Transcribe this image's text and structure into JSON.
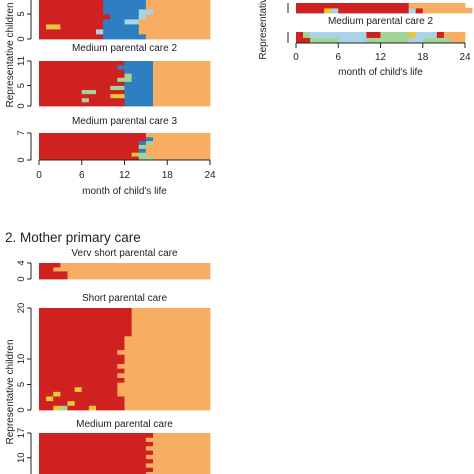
{
  "colors": {
    "red": "#d02121",
    "orange": "#f7ad62",
    "blue": "#2e7fc2",
    "green": "#a3d497",
    "yellow": "#e6c93b",
    "paleblue": "#aad3e8"
  },
  "sections": {
    "mother_primary": "2. Mother primary care"
  },
  "axis": {
    "xlabel": "month of child's life",
    "ylabel": "Representative children",
    "xticks": [
      "0",
      "6",
      "12",
      "18",
      "24"
    ]
  },
  "chart_data": [
    {
      "type": "sequence-index",
      "title": "",
      "ylabel": "Representative children",
      "xlim": [
        0,
        24
      ],
      "ylim": [
        0,
        9
      ],
      "yticks": [
        "0",
        "5"
      ],
      "rows": [
        [
          [
            "red",
            9
          ],
          [
            "blue",
            6
          ],
          [
            "orange",
            9
          ]
        ],
        [
          [
            "red",
            8
          ],
          [
            "paleblue",
            1
          ],
          [
            "blue",
            5
          ],
          [
            "orange",
            10
          ]
        ],
        [
          [
            "red",
            1
          ],
          [
            "yellow",
            2
          ],
          [
            "red",
            6
          ],
          [
            "blue",
            5
          ],
          [
            "orange",
            10
          ]
        ],
        [
          [
            "red",
            9
          ],
          [
            "blue",
            3
          ],
          [
            "paleblue",
            2
          ],
          [
            "orange",
            10
          ]
        ],
        [
          [
            "red",
            10
          ],
          [
            "blue",
            4
          ],
          [
            "paleblue",
            1
          ],
          [
            "orange",
            9
          ]
        ],
        [
          [
            "red",
            9
          ],
          [
            "blue",
            5
          ],
          [
            "paleblue",
            2
          ],
          [
            "orange",
            8
          ]
        ],
        [
          [
            "red",
            9
          ],
          [
            "blue",
            6
          ],
          [
            "orange",
            9
          ]
        ],
        [
          [
            "red",
            9
          ],
          [
            "blue",
            6
          ],
          [
            "orange",
            9
          ]
        ],
        [
          [
            "red",
            9
          ],
          [
            "blue",
            6
          ],
          [
            "orange",
            9
          ]
        ]
      ]
    },
    {
      "type": "sequence-index",
      "title": "Medium parental care 2",
      "ylabel": "",
      "xlim": [
        0,
        24
      ],
      "ylim": [
        0,
        11
      ],
      "yticks": [
        "0",
        "5",
        "11"
      ],
      "rows": [
        [
          [
            "red",
            12
          ],
          [
            "blue",
            4
          ],
          [
            "orange",
            8
          ]
        ],
        [
          [
            "red",
            6
          ],
          [
            "green",
            1
          ],
          [
            "red",
            5
          ],
          [
            "blue",
            4
          ],
          [
            "orange",
            8
          ]
        ],
        [
          [
            "red",
            10
          ],
          [
            "yellow",
            2
          ],
          [
            "blue",
            4
          ],
          [
            "orange",
            8
          ]
        ],
        [
          [
            "red",
            6
          ],
          [
            "green",
            2
          ],
          [
            "red",
            4
          ],
          [
            "blue",
            4
          ],
          [
            "orange",
            8
          ]
        ],
        [
          [
            "red",
            10
          ],
          [
            "green",
            2
          ],
          [
            "blue",
            4
          ],
          [
            "orange",
            8
          ]
        ],
        [
          [
            "red",
            12
          ],
          [
            "blue",
            4
          ],
          [
            "orange",
            8
          ]
        ],
        [
          [
            "red",
            11
          ],
          [
            "green",
            2
          ],
          [
            "blue",
            3
          ],
          [
            "orange",
            8
          ]
        ],
        [
          [
            "red",
            12
          ],
          [
            "green",
            1
          ],
          [
            "blue",
            3
          ],
          [
            "orange",
            8
          ]
        ],
        [
          [
            "red",
            12
          ],
          [
            "blue",
            4
          ],
          [
            "orange",
            8
          ]
        ],
        [
          [
            "red",
            11
          ],
          [
            "blue",
            5
          ],
          [
            "orange",
            8
          ]
        ],
        [
          [
            "red",
            12
          ],
          [
            "blue",
            4
          ],
          [
            "orange",
            8
          ]
        ]
      ]
    },
    {
      "type": "sequence-index",
      "title": "Medium parental care 3",
      "ylabel": "",
      "xlim": [
        0,
        24
      ],
      "ylim": [
        0,
        7
      ],
      "yticks": [
        "0",
        "7"
      ],
      "rows": [
        [
          [
            "red",
            14
          ],
          [
            "green",
            2
          ],
          [
            "orange",
            8
          ]
        ],
        [
          [
            "red",
            13
          ],
          [
            "yellow",
            1
          ],
          [
            "green",
            1
          ],
          [
            "orange",
            9
          ]
        ],
        [
          [
            "red",
            14
          ],
          [
            "blue",
            1
          ],
          [
            "orange",
            9
          ]
        ],
        [
          [
            "red",
            14
          ],
          [
            "green",
            1
          ],
          [
            "orange",
            9
          ]
        ],
        [
          [
            "red",
            14
          ],
          [
            "blue",
            1
          ],
          [
            "green",
            1
          ],
          [
            "orange",
            8
          ]
        ],
        [
          [
            "red",
            15
          ],
          [
            "blue",
            1
          ],
          [
            "orange",
            8
          ]
        ],
        [
          [
            "red",
            15
          ],
          [
            "orange",
            9
          ]
        ]
      ]
    },
    {
      "type": "sequence-index",
      "title": "",
      "ylabel": "Representative",
      "xlim": [
        0,
        24
      ],
      "ylim": [
        0,
        4
      ],
      "yticks": [],
      "rows": [
        [
          [
            "red",
            4
          ],
          [
            "yellow",
            1
          ],
          [
            "paleblue",
            1
          ],
          [
            "red",
            10
          ],
          [
            "paleblue",
            1
          ],
          [
            "red",
            1
          ],
          [
            "orange",
            7
          ]
        ],
        [
          [
            "red",
            16
          ],
          [
            "orange",
            8
          ]
        ]
      ]
    },
    {
      "type": "sequence-index",
      "title": "Medium parental care 2",
      "ylabel": "",
      "xlim": [
        0,
        24
      ],
      "ylim": [
        0,
        4
      ],
      "yticks": [],
      "rows": [
        [
          [
            "red",
            2
          ],
          [
            "green",
            4
          ],
          [
            "paleblue",
            4
          ],
          [
            "green",
            6
          ],
          [
            "paleblue",
            2
          ],
          [
            "green",
            4
          ],
          [
            "orange",
            2
          ]
        ],
        [
          [
            "red",
            1
          ],
          [
            "green",
            1
          ],
          [
            "paleblue",
            8
          ],
          [
            "red",
            2
          ],
          [
            "green",
            4
          ],
          [
            "yellow",
            1
          ],
          [
            "paleblue",
            3
          ],
          [
            "red",
            1
          ],
          [
            "orange",
            3
          ]
        ]
      ]
    },
    {
      "type": "sequence-index",
      "title": "Verv short parental care",
      "ylabel": "",
      "xlim": [
        0,
        24
      ],
      "ylim": [
        0,
        4
      ],
      "yticks": [
        "0",
        "4"
      ],
      "rows": [
        [
          [
            "red",
            4
          ],
          [
            "orange",
            20
          ]
        ],
        [
          [
            "red",
            4
          ],
          [
            "orange",
            20
          ]
        ],
        [
          [
            "red",
            2
          ],
          [
            "orange",
            22
          ]
        ],
        [
          [
            "red",
            3
          ],
          [
            "orange",
            21
          ]
        ]
      ]
    },
    {
      "type": "sequence-index",
      "title": "Short parental care",
      "ylabel": "Representative children",
      "xlim": [
        0,
        24
      ],
      "ylim": [
        0,
        20
      ],
      "yticks": [
        "0",
        "5",
        "10",
        "20"
      ],
      "rows": [
        [
          [
            "red",
            2
          ],
          [
            "yellow",
            1
          ],
          [
            "green",
            1
          ],
          [
            "red",
            3
          ],
          [
            "yellow",
            1
          ],
          [
            "red",
            4
          ],
          [
            "orange",
            12
          ]
        ],
        [
          [
            "red",
            4
          ],
          [
            "yellow",
            1
          ],
          [
            "red",
            7
          ],
          [
            "orange",
            12
          ]
        ],
        [
          [
            "red",
            1
          ],
          [
            "yellow",
            1
          ],
          [
            "red",
            10
          ],
          [
            "orange",
            12
          ]
        ],
        [
          [
            "red",
            2
          ],
          [
            "yellow",
            1
          ],
          [
            "red",
            8
          ],
          [
            "orange",
            13
          ]
        ],
        [
          [
            "red",
            5
          ],
          [
            "yellow",
            1
          ],
          [
            "red",
            5
          ],
          [
            "orange",
            13
          ]
        ],
        [
          [
            "red",
            11
          ],
          [
            "orange",
            13
          ]
        ],
        [
          [
            "red",
            12
          ],
          [
            "orange",
            12
          ]
        ],
        [
          [
            "red",
            11
          ],
          [
            "orange",
            13
          ]
        ],
        [
          [
            "red",
            12
          ],
          [
            "orange",
            12
          ]
        ],
        [
          [
            "red",
            11
          ],
          [
            "orange",
            13
          ]
        ],
        [
          [
            "red",
            12
          ],
          [
            "orange",
            12
          ]
        ],
        [
          [
            "red",
            12
          ],
          [
            "orange",
            12
          ]
        ],
        [
          [
            "red",
            11
          ],
          [
            "orange",
            13
          ]
        ],
        [
          [
            "red",
            12
          ],
          [
            "orange",
            12
          ]
        ],
        [
          [
            "red",
            12
          ],
          [
            "orange",
            12
          ]
        ],
        [
          [
            "red",
            12
          ],
          [
            "orange",
            12
          ]
        ],
        [
          [
            "red",
            13
          ],
          [
            "orange",
            11
          ]
        ],
        [
          [
            "red",
            13
          ],
          [
            "orange",
            11
          ]
        ],
        [
          [
            "red",
            13
          ],
          [
            "orange",
            11
          ]
        ],
        [
          [
            "red",
            13
          ],
          [
            "orange",
            11
          ]
        ],
        [
          [
            "red",
            13
          ],
          [
            "orange",
            11
          ]
        ],
        [
          [
            "red",
            13
          ],
          [
            "orange",
            11
          ]
        ]
      ]
    },
    {
      "type": "sequence-index",
      "title": "Medium parental care",
      "ylabel": "",
      "xlim": [
        0,
        24
      ],
      "ylim": [
        0,
        17
      ],
      "yticks": [
        "10",
        "17"
      ],
      "rows": [
        [
          [
            "red",
            15
          ],
          [
            "blue",
            1
          ],
          [
            "orange",
            8
          ]
        ],
        [
          [
            "red",
            14
          ],
          [
            "green",
            1
          ],
          [
            "blue",
            1
          ],
          [
            "orange",
            8
          ]
        ],
        [
          [
            "red",
            15
          ],
          [
            "green",
            1
          ],
          [
            "orange",
            8
          ]
        ],
        [
          [
            "red",
            16
          ],
          [
            "orange",
            8
          ]
        ],
        [
          [
            "red",
            15
          ],
          [
            "orange",
            9
          ]
        ],
        [
          [
            "red",
            16
          ],
          [
            "orange",
            8
          ]
        ],
        [
          [
            "red",
            15
          ],
          [
            "orange",
            9
          ]
        ],
        [
          [
            "red",
            16
          ],
          [
            "orange",
            8
          ]
        ],
        [
          [
            "red",
            15
          ],
          [
            "orange",
            9
          ]
        ],
        [
          [
            "red",
            16
          ],
          [
            "orange",
            8
          ]
        ],
        [
          [
            "red",
            15
          ],
          [
            "orange",
            9
          ]
        ],
        [
          [
            "red",
            16
          ],
          [
            "orange",
            8
          ]
        ],
        [
          [
            "red",
            15
          ],
          [
            "orange",
            9
          ]
        ],
        [
          [
            "red",
            16
          ],
          [
            "orange",
            8
          ]
        ]
      ]
    }
  ]
}
